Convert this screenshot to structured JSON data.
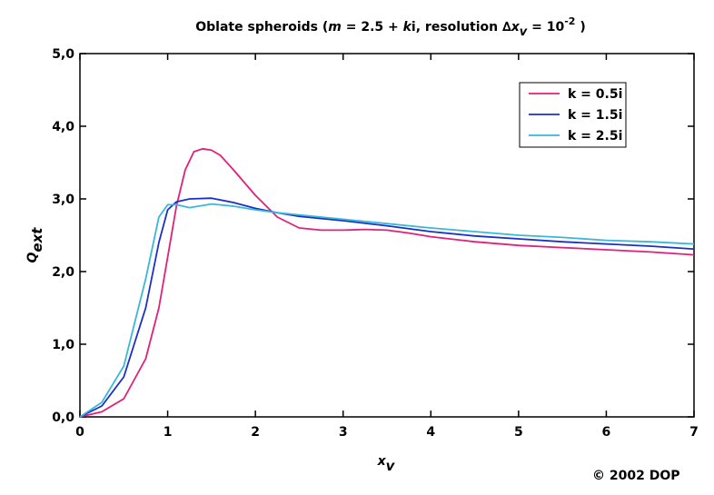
{
  "chart_data": {
    "type": "line",
    "title": [
      "Oblate spheroids (",
      "m",
      " = 2.5 + ",
      "k",
      "i, resolution ∆",
      "x",
      "v",
      " = 10",
      "-2",
      " )"
    ],
    "x_label": [
      "x",
      "v"
    ],
    "y_label": [
      "Q",
      "ext"
    ],
    "copyright": "© 2002  DOP",
    "xlim": [
      0,
      7
    ],
    "xticks": [
      0,
      1,
      2,
      3,
      4,
      5,
      6,
      7
    ],
    "ylim": [
      0,
      5
    ],
    "yticks": [
      {
        "value": 0,
        "label": "0,0"
      },
      {
        "value": 1,
        "label": "1,0"
      },
      {
        "value": 2,
        "label": "2,0"
      },
      {
        "value": 3,
        "label": "3,0"
      },
      {
        "value": 4,
        "label": "4,0"
      },
      {
        "value": 5,
        "label": "5,0"
      }
    ],
    "legend": "upper right",
    "series": [
      {
        "name": "k = 0.5i",
        "color": "#e0207a",
        "x": [
          0,
          0.25,
          0.5,
          0.75,
          0.9,
          1.0,
          1.1,
          1.2,
          1.3,
          1.4,
          1.5,
          1.6,
          1.75,
          2.0,
          2.25,
          2.5,
          2.75,
          3.0,
          3.25,
          3.5,
          3.75,
          4.0,
          4.5,
          5.0,
          5.5,
          6.0,
          6.5,
          7.0
        ],
        "values": [
          0,
          0.07,
          0.25,
          0.8,
          1.5,
          2.2,
          2.9,
          3.4,
          3.65,
          3.69,
          3.67,
          3.6,
          3.4,
          3.05,
          2.75,
          2.6,
          2.57,
          2.57,
          2.58,
          2.57,
          2.53,
          2.48,
          2.41,
          2.36,
          2.33,
          2.3,
          2.27,
          2.23
        ]
      },
      {
        "name": "k = 1.5i",
        "color": "#1a2fc8",
        "x": [
          0,
          0.25,
          0.5,
          0.75,
          0.9,
          1.0,
          1.1,
          1.25,
          1.5,
          1.75,
          2.0,
          2.25,
          2.5,
          3.0,
          3.5,
          4.0,
          4.5,
          5.0,
          5.5,
          6.0,
          6.5,
          7.0
        ],
        "values": [
          0,
          0.15,
          0.55,
          1.5,
          2.4,
          2.85,
          2.96,
          3.0,
          3.01,
          2.95,
          2.87,
          2.81,
          2.76,
          2.7,
          2.63,
          2.55,
          2.49,
          2.45,
          2.41,
          2.38,
          2.35,
          2.31
        ]
      },
      {
        "name": "k = 2.5i",
        "color": "#3ab8d8",
        "x": [
          0,
          0.25,
          0.5,
          0.75,
          0.9,
          1.0,
          1.1,
          1.25,
          1.5,
          1.75,
          2.0,
          2.25,
          2.5,
          3.0,
          3.5,
          4.0,
          4.5,
          5.0,
          5.5,
          6.0,
          6.5,
          7.0
        ],
        "values": [
          0,
          0.2,
          0.7,
          1.9,
          2.75,
          2.92,
          2.92,
          2.88,
          2.93,
          2.9,
          2.85,
          2.81,
          2.78,
          2.72,
          2.66,
          2.6,
          2.55,
          2.5,
          2.47,
          2.43,
          2.41,
          2.38
        ]
      }
    ]
  }
}
